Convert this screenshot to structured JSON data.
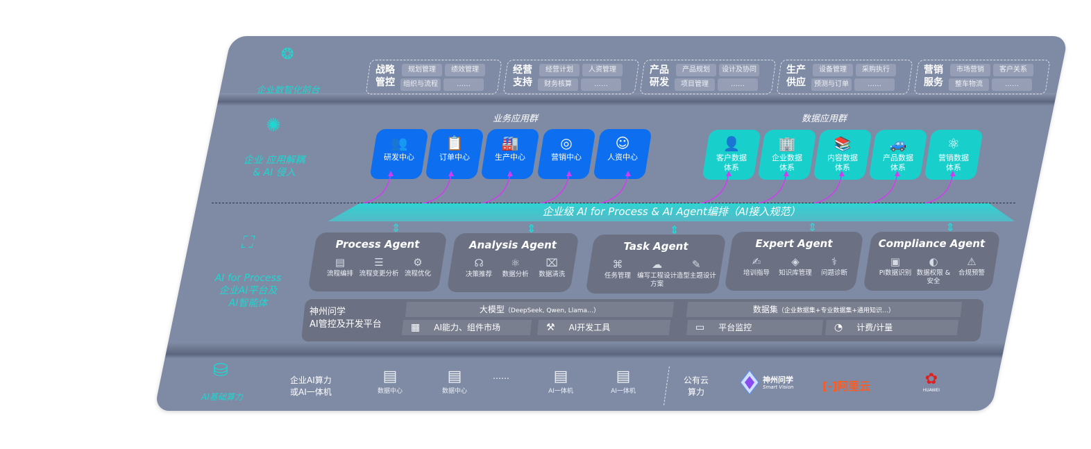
{
  "colors": {
    "slab": "#7f8ba5",
    "accent_teal": "#1fd6d0",
    "business_blue": "#0d6ef0",
    "data_teal": "#19cfcc",
    "agent_box": "#6b7183",
    "arrow_magenta": "#d23cf0"
  },
  "layers": {
    "front": "企业数智化前台",
    "apps": [
      "企业 应用解耦",
      "& AI 侵入"
    ],
    "ai": [
      "AI for Process",
      "企业AI平台及",
      "AI智能体"
    ],
    "compute": "AI基础算力"
  },
  "front_groups": [
    {
      "title": "战略管控",
      "chips": [
        "规划管理",
        "绩效管理",
        "组织与流程",
        "……"
      ]
    },
    {
      "title": "经营支持",
      "chips": [
        "经营计划",
        "人资管理",
        "财务核算",
        "……"
      ]
    },
    {
      "title": "产品研发",
      "chips": [
        "产品规划",
        "设计及协同",
        "项目管理",
        "……"
      ]
    },
    {
      "title": "生产供应",
      "chips": [
        "设备管理",
        "采购执行",
        "预测与订单",
        "……"
      ]
    },
    {
      "title": "营销服务",
      "chips": [
        "市场营销",
        "客户关系",
        "整车物流",
        "……"
      ]
    }
  ],
  "business_apps": {
    "title": "业务应用群",
    "items": [
      {
        "label": "研发中心",
        "icon": "team-icon"
      },
      {
        "label": "订单中心",
        "icon": "clipboard-icon"
      },
      {
        "label": "生产中心",
        "icon": "factory-icon"
      },
      {
        "label": "营销中心",
        "icon": "target-icon"
      },
      {
        "label": "人资中心",
        "icon": "person-icon"
      }
    ]
  },
  "data_apps": {
    "title": "数据应用群",
    "items": [
      {
        "label": "客户数据\n体系",
        "icon": "user-icon"
      },
      {
        "label": "企业数据\n体系",
        "icon": "building-icon"
      },
      {
        "label": "内容数据\n体系",
        "icon": "books-icon"
      },
      {
        "label": "产品数据\n体系",
        "icon": "car-icon"
      },
      {
        "label": "营销数据\n体系",
        "icon": "atom-icon"
      }
    ]
  },
  "orchestration": "企业级 AI for Process & AI Agent编排（AI接入规范）",
  "agents": [
    {
      "title": "Process Agent",
      "items": [
        {
          "label": "流程编排",
          "icon": "chart-icon"
        },
        {
          "label": "流程变更分析",
          "icon": "list-icon"
        },
        {
          "label": "流程优化",
          "icon": "optimize-icon"
        }
      ]
    },
    {
      "title": "Analysis Agent",
      "items": [
        {
          "label": "决策推荐",
          "icon": "head-icon"
        },
        {
          "label": "数据分析",
          "icon": "atom-icon"
        },
        {
          "label": "数据清洗",
          "icon": "clean-icon"
        }
      ]
    },
    {
      "title": "Task Agent",
      "items": [
        {
          "label": "任务管理",
          "icon": "network-icon"
        },
        {
          "label": "编写工程设计方案",
          "icon": "cloud-icon"
        },
        {
          "label": "造型主题设计",
          "icon": "design-icon"
        }
      ]
    },
    {
      "title": "Expert Agent",
      "items": [
        {
          "label": "培训指导",
          "icon": "teacher-icon"
        },
        {
          "label": "知识库管理",
          "icon": "layers-icon"
        },
        {
          "label": "问题诊断",
          "icon": "diagnose-icon"
        }
      ]
    },
    {
      "title": "Compliance Agent",
      "items": [
        {
          "label": "PI数据识别",
          "icon": "id-icon"
        },
        {
          "label": "数据权限 &\n安全",
          "icon": "lock-icon"
        },
        {
          "label": "合规预警",
          "icon": "alert-icon"
        }
      ]
    }
  ],
  "platform": {
    "name": [
      "神州问学",
      "AI管控及开发平台"
    ],
    "llm": "大模型",
    "llm_note": "（DeepSeek, Qwen, Llama…）",
    "dataset": "数据集",
    "dataset_note": "（企业数据集+专业数据集+通用知识…）",
    "cells": [
      {
        "label": "AI能力、组件市场",
        "icon": "market-icon"
      },
      {
        "label": "AI开发工具",
        "icon": "devtool-icon"
      },
      {
        "label": "平台监控",
        "icon": "monitor-icon"
      },
      {
        "label": "计费/计量",
        "icon": "gauge-icon"
      }
    ]
  },
  "compute": {
    "enterprise": [
      "企业AI算力",
      "或AI一体机"
    ],
    "servers": [
      "数据中心",
      "数据中心",
      "AI一体机",
      "AI一体机"
    ],
    "ellipsis": "……",
    "public": [
      "公有云",
      "算力"
    ],
    "vendors": {
      "shenzhou": "神州问学",
      "shenzhou_sub": "Smart Vision",
      "aliyun": "阿里云",
      "huawei": "HUAWEI"
    }
  }
}
